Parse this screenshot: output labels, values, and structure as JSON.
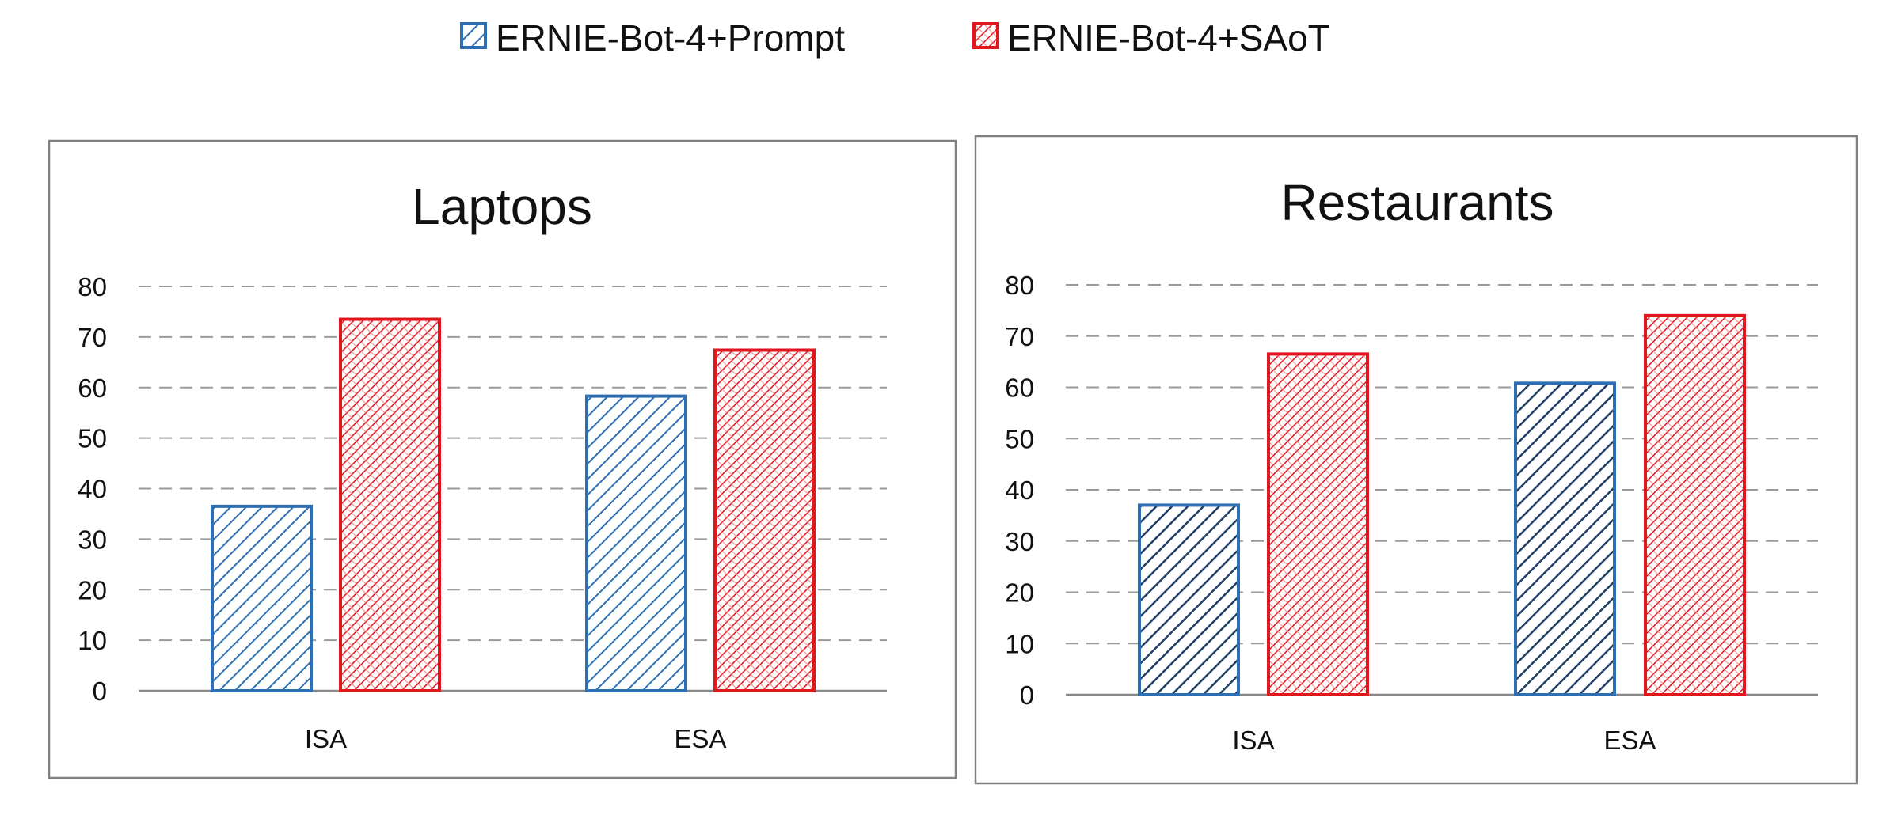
{
  "legend": {
    "placement": "top-center",
    "items": [
      {
        "label": "ERNIE-Bot-4+Prompt",
        "color": "#2e6fb3",
        "pattern": "diagonal-hatch"
      },
      {
        "label": "ERNIE-Bot-4+SAoT",
        "color": "#e0171f",
        "pattern": "cross-hatch"
      }
    ]
  },
  "chart_data": [
    {
      "type": "bar",
      "title": "Laptops",
      "categories": [
        "ISA",
        "ESA"
      ],
      "series": [
        {
          "name": "ERNIE-Bot-4+Prompt",
          "values": [
            36.5,
            58.3
          ]
        },
        {
          "name": "ERNIE-Bot-4+SAoT",
          "values": [
            73.5,
            67.4
          ]
        }
      ],
      "ylim": [
        0,
        80
      ],
      "yticks": [
        0,
        10,
        20,
        30,
        40,
        50,
        60,
        70,
        80
      ],
      "xlabel": "",
      "ylabel": "",
      "grid": "horizontal-dashed"
    },
    {
      "type": "bar",
      "title": "Restaurants",
      "categories": [
        "ISA",
        "ESA"
      ],
      "series": [
        {
          "name": "ERNIE-Bot-4+Prompt",
          "values": [
            37.0,
            60.8
          ]
        },
        {
          "name": "ERNIE-Bot-4+SAoT",
          "values": [
            66.5,
            74.0
          ]
        }
      ],
      "ylim": [
        0,
        80
      ],
      "yticks": [
        0,
        10,
        20,
        30,
        40,
        50,
        60,
        70,
        80
      ],
      "xlabel": "",
      "ylabel": "",
      "grid": "horizontal-dashed"
    }
  ]
}
